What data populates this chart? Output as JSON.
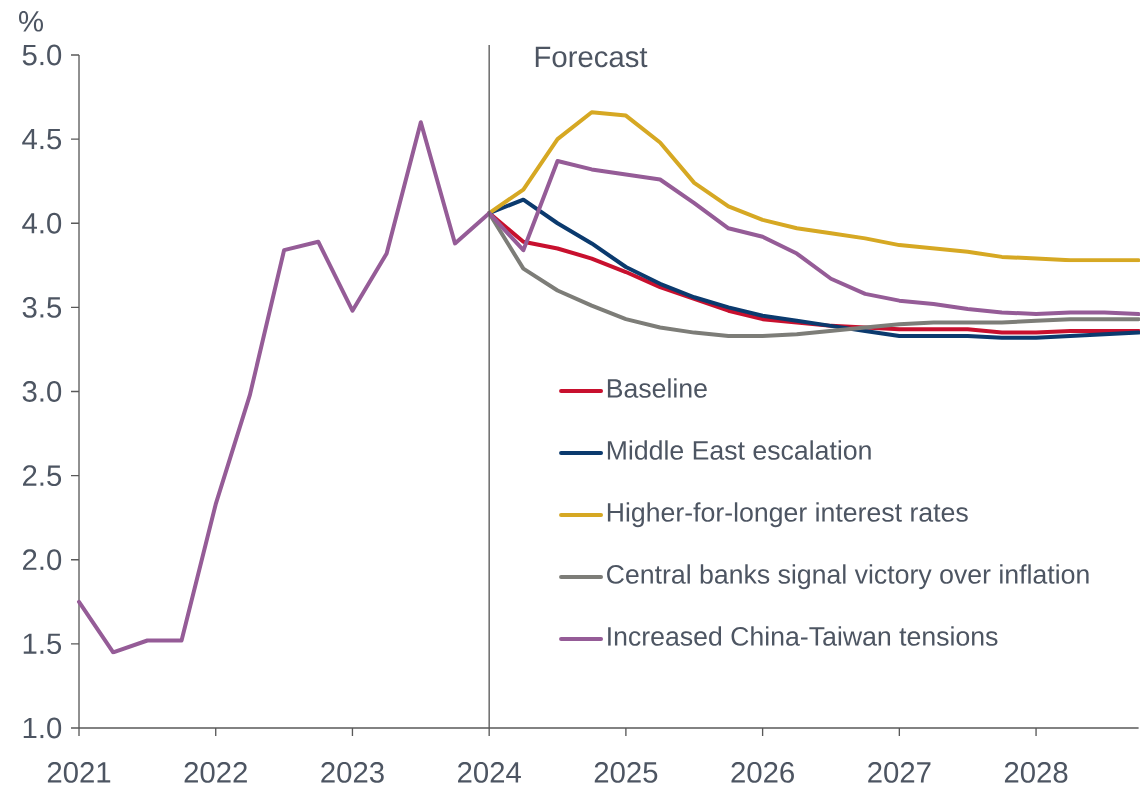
{
  "chart_data": {
    "type": "line",
    "ylabel": "%",
    "xlim": [
      2021,
      2028.75
    ],
    "xticks": [
      2021,
      2022,
      2023,
      2024,
      2025,
      2026,
      2027,
      2028
    ],
    "ylim": [
      1,
      5
    ],
    "yticks": [
      {
        "value": 1,
        "label": "1.0"
      },
      {
        "value": 1.5,
        "label": "1.5"
      },
      {
        "value": 2,
        "label": "2.0"
      },
      {
        "value": 2.5,
        "label": "2.5"
      },
      {
        "value": 3,
        "label": "3.0"
      },
      {
        "value": 3.5,
        "label": "3.5"
      },
      {
        "value": 4,
        "label": "4.0"
      },
      {
        "value": 4.5,
        "label": "4.5"
      },
      {
        "value": 5,
        "label": "5.0"
      }
    ],
    "legend": "bottom right",
    "ref_lines": [
      {
        "axis": "x",
        "value": 2024,
        "label": "Forecast",
        "color": "#595959"
      }
    ],
    "series": [
      {
        "name": "Baseline",
        "color": "#c8102e",
        "x": [
          2024,
          2024.25,
          2024.5,
          2024.75,
          2025,
          2025.25,
          2025.5,
          2025.75,
          2026,
          2026.25,
          2026.5,
          2026.75,
          2027,
          2027.25,
          2027.5,
          2027.75,
          2028,
          2028.25,
          2028.5,
          2028.75
        ],
        "values": [
          4.06,
          3.89,
          3.85,
          3.79,
          3.71,
          3.62,
          3.55,
          3.48,
          3.43,
          3.41,
          3.39,
          3.38,
          3.37,
          3.37,
          3.37,
          3.35,
          3.35,
          3.36,
          3.36,
          3.36
        ]
      },
      {
        "name": "Middle East escalation",
        "color": "#0b3a6e",
        "x": [
          2024,
          2024.25,
          2024.5,
          2024.75,
          2025,
          2025.25,
          2025.5,
          2025.75,
          2026,
          2026.25,
          2026.5,
          2026.75,
          2027,
          2027.25,
          2027.5,
          2027.75,
          2028,
          2028.25,
          2028.5,
          2028.75
        ],
        "values": [
          4.06,
          4.14,
          4.0,
          3.88,
          3.74,
          3.64,
          3.56,
          3.5,
          3.45,
          3.42,
          3.39,
          3.36,
          3.33,
          3.33,
          3.33,
          3.32,
          3.32,
          3.33,
          3.34,
          3.35
        ]
      },
      {
        "name": "Higher-for-longer interest rates",
        "color": "#d6a823",
        "x": [
          2024,
          2024.25,
          2024.5,
          2024.75,
          2025,
          2025.25,
          2025.5,
          2025.75,
          2026,
          2026.25,
          2026.5,
          2026.75,
          2027,
          2027.25,
          2027.5,
          2027.75,
          2028,
          2028.25,
          2028.5,
          2028.75
        ],
        "values": [
          4.06,
          4.2,
          4.5,
          4.66,
          4.64,
          4.48,
          4.24,
          4.1,
          4.02,
          3.97,
          3.94,
          3.91,
          3.87,
          3.85,
          3.83,
          3.8,
          3.79,
          3.78,
          3.78,
          3.78
        ]
      },
      {
        "name": "Central banks signal victory over inflation",
        "color": "#7d7d78",
        "x": [
          2024,
          2024.25,
          2024.5,
          2024.75,
          2025,
          2025.25,
          2025.5,
          2025.75,
          2026,
          2026.25,
          2026.5,
          2026.75,
          2027,
          2027.25,
          2027.5,
          2027.75,
          2028,
          2028.25,
          2028.5,
          2028.75
        ],
        "values": [
          4.06,
          3.73,
          3.6,
          3.51,
          3.43,
          3.38,
          3.35,
          3.33,
          3.33,
          3.34,
          3.36,
          3.38,
          3.4,
          3.41,
          3.41,
          3.41,
          3.42,
          3.43,
          3.43,
          3.43
        ]
      },
      {
        "name": "Increased China-Taiwan tensions",
        "color": "#955c97",
        "x": [
          2021,
          2021.25,
          2021.5,
          2021.75,
          2022,
          2022.25,
          2022.5,
          2022.75,
          2023,
          2023.25,
          2023.5,
          2023.75,
          2024,
          2024.25,
          2024.5,
          2024.75,
          2025,
          2025.25,
          2025.5,
          2025.75,
          2026,
          2026.25,
          2026.5,
          2026.75,
          2027,
          2027.25,
          2027.5,
          2027.75,
          2028,
          2028.25,
          2028.5,
          2028.75
        ],
        "values": [
          1.75,
          1.45,
          1.52,
          1.52,
          2.33,
          2.98,
          3.84,
          3.89,
          3.48,
          3.82,
          4.6,
          3.88,
          4.06,
          3.84,
          4.37,
          4.32,
          4.29,
          4.26,
          4.12,
          3.97,
          3.92,
          3.82,
          3.67,
          3.58,
          3.54,
          3.52,
          3.49,
          3.47,
          3.46,
          3.47,
          3.47,
          3.46
        ]
      }
    ]
  }
}
